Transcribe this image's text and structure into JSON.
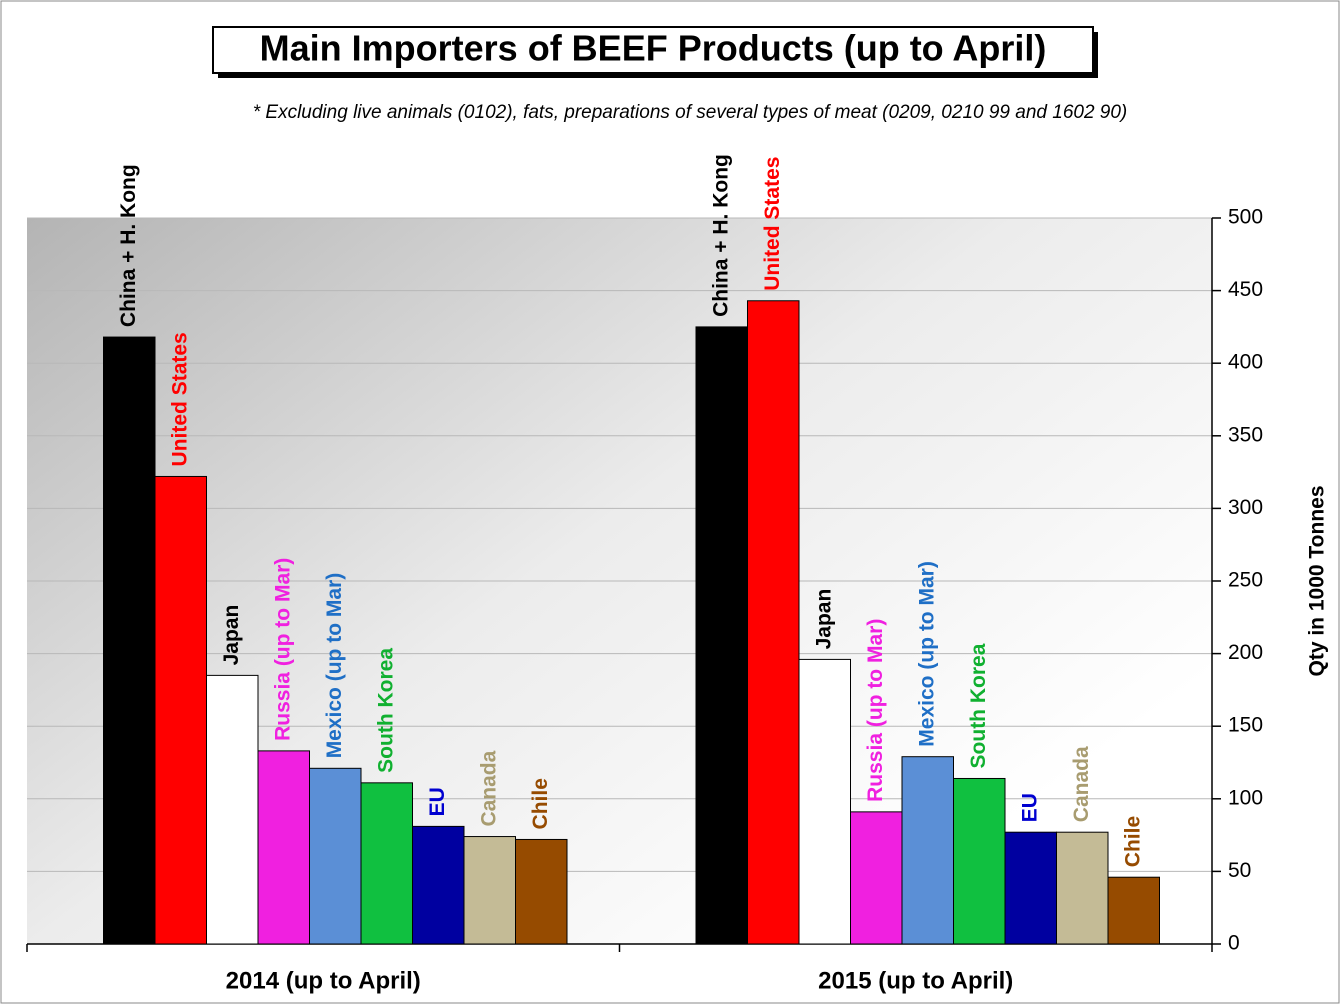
{
  "chart_data": {
    "type": "bar",
    "title": "Main Importers of BEEF Products (up to April)",
    "subtitle": "* Excluding  live animals (0102), fats, preparations  of several types of meat (0209, 0210 99 and 1602 90)",
    "y_label": "Qty in 1000 Tonnes",
    "categories": [
      "2014 (up to April)",
      "2015 (up to April)"
    ],
    "series": [
      {
        "name": "China + H. Kong",
        "color": "#000000",
        "label_color": "#000000",
        "values": [
          418,
          425
        ]
      },
      {
        "name": "United States",
        "color": "#ff0000",
        "label_color": "#ff0000",
        "values": [
          322,
          443
        ]
      },
      {
        "name": "Japan",
        "color": "#ffffff",
        "label_color": "#000000",
        "values": [
          185,
          196
        ]
      },
      {
        "name": "Russia (up to Mar)",
        "color": "#f020e0",
        "label_color": "#f020e0",
        "values": [
          133,
          91
        ]
      },
      {
        "name": "Mexico (up to Mar)",
        "color": "#5b8fd6",
        "label_color": "#1f6fc6",
        "values": [
          121,
          129
        ]
      },
      {
        "name": "South Korea",
        "color": "#10c040",
        "label_color": "#10b030",
        "values": [
          111,
          114
        ]
      },
      {
        "name": "EU",
        "color": "#0000a0",
        "label_color": "#0000d0",
        "values": [
          81,
          77
        ]
      },
      {
        "name": "Canada",
        "color": "#c4bb96",
        "label_color": "#a89c70",
        "values": [
          74,
          77
        ]
      },
      {
        "name": "Chile",
        "color": "#964b00",
        "label_color": "#964b00",
        "values": [
          72,
          46
        ]
      }
    ],
    "ylim": [
      0,
      500
    ],
    "yticks": [
      0,
      50,
      100,
      150,
      200,
      250,
      300,
      350,
      400,
      450,
      500
    ],
    "grid": true,
    "y_axis_side": "right"
  }
}
